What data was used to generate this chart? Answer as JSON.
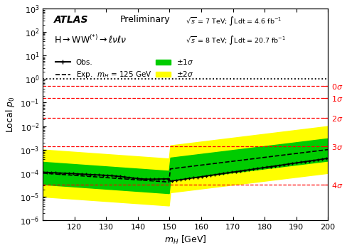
{
  "xlim": [
    110,
    200
  ],
  "ylim": [
    1e-06,
    1000.0
  ],
  "sigma_lines": {
    "0sigma": 0.5,
    "1sigma": 0.1587,
    "2sigma": 0.02275,
    "3sigma": 0.00135,
    "4sigma": 3.167e-05
  },
  "color_1sigma": "#00cc00",
  "color_2sigma": "#ffff00",
  "color_obs": "black",
  "color_exp": "black",
  "color_sigma_lines": "red",
  "xticks": [
    120,
    130,
    140,
    150,
    160,
    170,
    180,
    190,
    200
  ]
}
